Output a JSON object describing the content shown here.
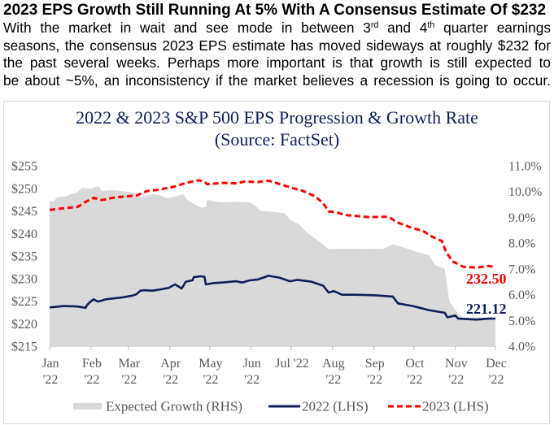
{
  "article": {
    "headline": "2023 EPS Growth Still Running At 5% With A Consensus Estimate Of $232",
    "body": {
      "line1_parts": [
        "With the market in wait and see mode in between 3",
        "rd",
        " and 4",
        "th",
        " quarter earnings"
      ],
      "line2": "seasons, the consensus 2023 EPS estimate has moved sideways at roughly $232 for",
      "line3": "the past several weeks. Perhaps more important is that growth is still expected to",
      "line4": "be about ~5%, an inconsistency if the market believes a recession is going to occur."
    }
  },
  "chart_data": {
    "type": "line",
    "title": "2022 & 2023 S&P 500 EPS Progression & Growth Rate",
    "subtitle": "(Source: FactSet)",
    "xlabel": "",
    "ylabel": "",
    "y2label": "",
    "grid": false,
    "legend": {
      "position": "bottom"
    },
    "x_range": [
      "2022-01-01",
      "2022-12-01"
    ],
    "x_ticks": [
      {
        "date": "2022-01-01",
        "lines": [
          "Jan",
          "'22"
        ]
      },
      {
        "date": "2022-02-01",
        "lines": [
          "Feb",
          "'22"
        ]
      },
      {
        "date": "2022-03-01",
        "lines": [
          "Mar",
          "'22"
        ]
      },
      {
        "date": "2022-04-01",
        "lines": [
          "Apr",
          "'22"
        ]
      },
      {
        "date": "2022-05-01",
        "lines": [
          "May",
          "'22"
        ]
      },
      {
        "date": "2022-06-01",
        "lines": [
          "Jun",
          "'22"
        ]
      },
      {
        "date": "2022-07-01",
        "lines": [
          "Jul '22"
        ]
      },
      {
        "date": "2022-08-01",
        "lines": [
          "Aug",
          "'22"
        ]
      },
      {
        "date": "2022-09-01",
        "lines": [
          "Sep",
          "'22"
        ]
      },
      {
        "date": "2022-10-01",
        "lines": [
          "Oct",
          "'22"
        ]
      },
      {
        "date": "2022-11-01",
        "lines": [
          "Nov",
          "'22"
        ]
      },
      {
        "date": "2022-12-01",
        "lines": [
          "Dec",
          "'22"
        ]
      }
    ],
    "ylim": [
      215,
      255
    ],
    "y_ticks": [
      {
        "value": 255,
        "label": "$255"
      },
      {
        "value": 250,
        "label": "$250"
      },
      {
        "value": 245,
        "label": "$245"
      },
      {
        "value": 240,
        "label": "$240"
      },
      {
        "value": 235,
        "label": "$235"
      },
      {
        "value": 230,
        "label": "$230"
      },
      {
        "value": 225,
        "label": "$225"
      },
      {
        "value": 220,
        "label": "$220"
      },
      {
        "value": 215,
        "label": "$215"
      }
    ],
    "y2lim": [
      4,
      11
    ],
    "y2_ticks": [
      {
        "value": 11,
        "label": "11.0%"
      },
      {
        "value": 10,
        "label": "10.0%"
      },
      {
        "value": 9,
        "label": "9.0%"
      },
      {
        "value": 8,
        "label": "8.0%"
      },
      {
        "value": 7,
        "label": "7.0%"
      },
      {
        "value": 6,
        "label": "6.0%"
      },
      {
        "value": 5,
        "label": "5.0%"
      },
      {
        "value": 4,
        "label": "4.0%"
      }
    ],
    "series": [
      {
        "id": "expected-growth",
        "name": "Expected Growth (RHS)",
        "type": "area",
        "axis": "right",
        "color": "#d9d9d9",
        "points": [
          [
            "2022-01-01",
            9.65
          ],
          [
            "2022-01-04",
            9.62
          ],
          [
            "2022-01-07",
            9.79
          ],
          [
            "2022-01-12",
            9.8
          ],
          [
            "2022-01-17",
            9.9
          ],
          [
            "2022-01-21",
            9.95
          ],
          [
            "2022-01-26",
            10.16
          ],
          [
            "2022-01-29",
            10.12
          ],
          [
            "2022-02-01",
            10.11
          ],
          [
            "2022-02-04",
            10.18
          ],
          [
            "2022-02-07",
            10.21
          ],
          [
            "2022-02-09",
            10.02
          ],
          [
            "2022-02-14",
            10.05
          ],
          [
            "2022-02-19",
            10.05
          ],
          [
            "2022-02-27",
            10.0
          ],
          [
            "2022-03-05",
            9.95
          ],
          [
            "2022-03-11",
            9.79
          ],
          [
            "2022-03-19",
            9.9
          ],
          [
            "2022-03-25",
            9.85
          ],
          [
            "2022-03-30",
            9.74
          ],
          [
            "2022-04-05",
            9.8
          ],
          [
            "2022-04-11",
            9.9
          ],
          [
            "2022-04-15",
            9.63
          ],
          [
            "2022-04-20",
            9.5
          ],
          [
            "2022-04-25",
            9.37
          ],
          [
            "2022-04-28",
            9.42
          ],
          [
            "2022-04-29",
            9.68
          ],
          [
            "2022-05-04",
            9.62
          ],
          [
            "2022-05-10",
            9.58
          ],
          [
            "2022-05-20",
            9.6
          ],
          [
            "2022-05-31",
            9.58
          ],
          [
            "2022-06-04",
            9.45
          ],
          [
            "2022-06-08",
            9.26
          ],
          [
            "2022-06-16",
            9.22
          ],
          [
            "2022-06-26",
            9.16
          ],
          [
            "2022-07-01",
            8.88
          ],
          [
            "2022-07-07",
            8.72
          ],
          [
            "2022-07-13",
            8.4
          ],
          [
            "2022-07-21",
            8.1
          ],
          [
            "2022-07-29",
            7.76
          ],
          [
            "2022-08-10",
            7.78
          ],
          [
            "2022-08-25",
            7.77
          ],
          [
            "2022-09-08",
            7.78
          ],
          [
            "2022-09-15",
            7.95
          ],
          [
            "2022-09-22",
            7.85
          ],
          [
            "2022-09-30",
            7.71
          ],
          [
            "2022-10-12",
            7.53
          ],
          [
            "2022-10-17",
            7.15
          ],
          [
            "2022-10-24",
            7.0
          ],
          [
            "2022-10-27",
            5.9
          ],
          [
            "2022-10-28",
            5.69
          ],
          [
            "2022-11-03",
            5.27
          ],
          [
            "2022-11-07",
            5.11
          ],
          [
            "2022-12-01",
            5.11
          ]
        ]
      },
      {
        "id": "eps-2022",
        "name": "2022 (LHS)",
        "type": "line",
        "style": "solid",
        "axis": "left",
        "color": "#0d1f5b",
        "end_label": "221.12",
        "points": [
          [
            "2022-01-01",
            223.6
          ],
          [
            "2022-01-12",
            223.9
          ],
          [
            "2022-01-22",
            223.8
          ],
          [
            "2022-01-28",
            223.5
          ],
          [
            "2022-01-29",
            224.1
          ],
          [
            "2022-01-31",
            224.7
          ],
          [
            "2022-02-03",
            225.4
          ],
          [
            "2022-02-06",
            224.9
          ],
          [
            "2022-02-09",
            225.1
          ],
          [
            "2022-02-12",
            225.4
          ],
          [
            "2022-02-24",
            225.8
          ],
          [
            "2022-03-04",
            226.2
          ],
          [
            "2022-03-07",
            226.5
          ],
          [
            "2022-03-10",
            227.3
          ],
          [
            "2022-03-13",
            227.4
          ],
          [
            "2022-03-19",
            227.3
          ],
          [
            "2022-03-25",
            227.6
          ],
          [
            "2022-03-31",
            227.9
          ],
          [
            "2022-04-05",
            228.7
          ],
          [
            "2022-04-10",
            227.8
          ],
          [
            "2022-04-13",
            229.3
          ],
          [
            "2022-04-18",
            229.6
          ],
          [
            "2022-04-19",
            230.3
          ],
          [
            "2022-04-24",
            230.5
          ],
          [
            "2022-04-27",
            230.4
          ],
          [
            "2022-04-28",
            228.7
          ],
          [
            "2022-05-04",
            229.0
          ],
          [
            "2022-05-10",
            229.1
          ],
          [
            "2022-05-21",
            229.4
          ],
          [
            "2022-05-25",
            229.1
          ],
          [
            "2022-05-31",
            229.6
          ],
          [
            "2022-06-06",
            229.8
          ],
          [
            "2022-06-14",
            230.6
          ],
          [
            "2022-06-22",
            230.2
          ],
          [
            "2022-06-30",
            229.4
          ],
          [
            "2022-07-06",
            229.7
          ],
          [
            "2022-07-16",
            229.3
          ],
          [
            "2022-07-25",
            228.4
          ],
          [
            "2022-07-29",
            226.9
          ],
          [
            "2022-08-02",
            227.2
          ],
          [
            "2022-08-08",
            226.4
          ],
          [
            "2022-08-18",
            226.4
          ],
          [
            "2022-09-01",
            226.3
          ],
          [
            "2022-09-15",
            226.0
          ],
          [
            "2022-09-19",
            224.5
          ],
          [
            "2022-09-30",
            223.9
          ],
          [
            "2022-10-12",
            223.0
          ],
          [
            "2022-10-24",
            222.4
          ],
          [
            "2022-10-26",
            221.4
          ],
          [
            "2022-11-01",
            221.8
          ],
          [
            "2022-11-03",
            221.1
          ],
          [
            "2022-11-17",
            220.9
          ],
          [
            "2022-11-26",
            221.1
          ],
          [
            "2022-12-01",
            221.12
          ]
        ]
      },
      {
        "id": "eps-2023",
        "name": "2023 (LHS)",
        "type": "line",
        "style": "dashed",
        "axis": "left",
        "color": "#ff0000",
        "end_label": "232.50",
        "points": [
          [
            "2022-01-01",
            245.2
          ],
          [
            "2022-01-09",
            245.5
          ],
          [
            "2022-01-22",
            245.9
          ],
          [
            "2022-01-28",
            247.0
          ],
          [
            "2022-02-03",
            247.9
          ],
          [
            "2022-02-09",
            247.4
          ],
          [
            "2022-02-19",
            248.0
          ],
          [
            "2022-03-07",
            248.4
          ],
          [
            "2022-03-15",
            249.4
          ],
          [
            "2022-03-24",
            249.7
          ],
          [
            "2022-04-05",
            250.4
          ],
          [
            "2022-04-13",
            251.2
          ],
          [
            "2022-04-23",
            251.8
          ],
          [
            "2022-04-27",
            251.5
          ],
          [
            "2022-04-29",
            250.9
          ],
          [
            "2022-05-10",
            251.2
          ],
          [
            "2022-05-21",
            251.1
          ],
          [
            "2022-05-27",
            251.5
          ],
          [
            "2022-06-06",
            251.4
          ],
          [
            "2022-06-14",
            251.7
          ],
          [
            "2022-06-26",
            250.6
          ],
          [
            "2022-07-04",
            249.9
          ],
          [
            "2022-07-10",
            249.4
          ],
          [
            "2022-07-19",
            248.2
          ],
          [
            "2022-07-25",
            246.7
          ],
          [
            "2022-07-29",
            244.9
          ],
          [
            "2022-08-04",
            244.7
          ],
          [
            "2022-08-10",
            244.1
          ],
          [
            "2022-08-18",
            243.9
          ],
          [
            "2022-08-28",
            243.6
          ],
          [
            "2022-09-12",
            243.7
          ],
          [
            "2022-09-18",
            242.5
          ],
          [
            "2022-09-28",
            241.4
          ],
          [
            "2022-10-08",
            240.5
          ],
          [
            "2022-10-15",
            239.2
          ],
          [
            "2022-10-22",
            238.3
          ],
          [
            "2022-10-25",
            235.9
          ],
          [
            "2022-10-30",
            233.8
          ],
          [
            "2022-11-07",
            232.6
          ],
          [
            "2022-11-17",
            232.4
          ],
          [
            "2022-11-26",
            232.8
          ],
          [
            "2022-12-01",
            232.5
          ]
        ]
      }
    ]
  }
}
